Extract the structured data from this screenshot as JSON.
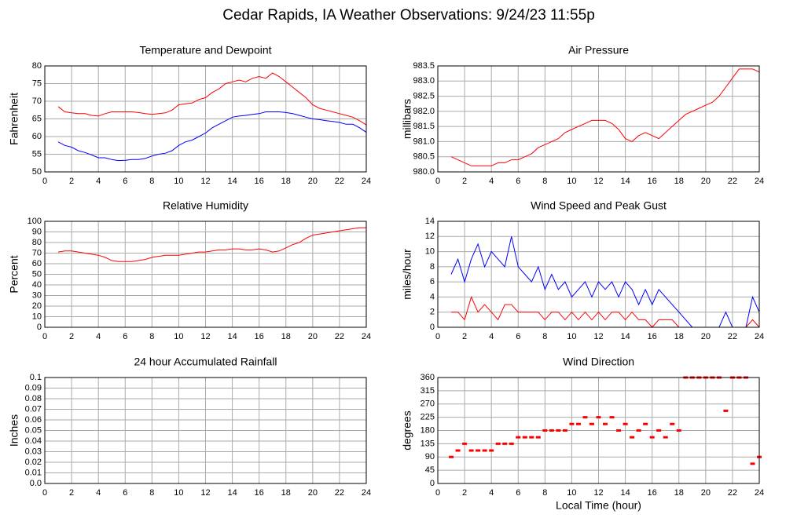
{
  "header": {
    "title": "Cedar Rapids, IA Weather Observations: 9/24/23 11:55p"
  },
  "chart_data": [
    {
      "type": "line",
      "title": "Temperature and Dewpoint",
      "y_label": "Fahrenheit",
      "x": [
        1,
        1.5,
        2,
        2.5,
        3,
        3.5,
        4,
        4.5,
        5,
        5.5,
        6,
        6.5,
        7,
        7.5,
        8,
        8.5,
        9,
        9.5,
        10,
        10.5,
        11,
        11.5,
        12,
        12.5,
        13,
        13.5,
        14,
        14.5,
        15,
        15.5,
        16,
        16.5,
        17,
        17.5,
        18,
        18.5,
        19,
        19.5,
        20,
        20.5,
        21,
        21.5,
        22,
        22.5,
        23,
        23.5,
        24
      ],
      "series": [
        {
          "color": "#ff0000",
          "values": [
            68.5,
            67,
            66.7,
            66.5,
            66.5,
            66,
            65.8,
            66.5,
            67,
            67,
            67,
            67,
            66.8,
            66.5,
            66.3,
            66.5,
            66.7,
            67.5,
            69,
            69.3,
            69.5,
            70.5,
            71,
            72.5,
            73.5,
            75,
            75.5,
            76,
            75.5,
            76.5,
            77,
            76.5,
            78,
            77,
            75.5,
            74,
            72.5,
            71,
            69,
            68,
            67.5,
            67,
            66.5,
            66,
            65.5,
            64.5,
            63.3
          ]
        },
        {
          "color": "#0000ff",
          "values": [
            58.5,
            57.5,
            57,
            56,
            55.5,
            54.8,
            54,
            54,
            53.5,
            53.2,
            53.3,
            53.5,
            53.5,
            53.8,
            54.5,
            55,
            55.3,
            56,
            57.5,
            58.5,
            59,
            60,
            61,
            62.5,
            63.5,
            64.5,
            65.5,
            65.8,
            66,
            66.3,
            66.5,
            67,
            67,
            67,
            66.8,
            66.5,
            66,
            65.5,
            65,
            64.8,
            64.5,
            64.3,
            64,
            63.5,
            63.5,
            62.5,
            61.2
          ]
        }
      ],
      "xlim": [
        0,
        24
      ],
      "xticks": [
        0,
        2,
        4,
        6,
        8,
        10,
        12,
        14,
        16,
        18,
        20,
        22,
        24
      ],
      "ylim": [
        50,
        80
      ],
      "yticks": [
        50,
        55,
        60,
        65,
        70,
        75,
        80
      ],
      "grid": true
    },
    {
      "type": "line",
      "title": "Air Pressure",
      "y_label": "millibars",
      "x": [
        1,
        1.5,
        2,
        2.5,
        3,
        3.5,
        4,
        4.5,
        5,
        5.5,
        6,
        6.5,
        7,
        7.5,
        8,
        8.5,
        9,
        9.5,
        10,
        10.5,
        11,
        11.5,
        12,
        12.5,
        13,
        13.5,
        14,
        14.5,
        15,
        15.5,
        16,
        16.5,
        17,
        17.5,
        18,
        18.5,
        19,
        19.5,
        20,
        20.5,
        21,
        21.5,
        22,
        22.5,
        23,
        23.5,
        24
      ],
      "series": [
        {
          "color": "#ff0000",
          "values": [
            980.5,
            980.4,
            980.3,
            980.2,
            980.2,
            980.2,
            980.2,
            980.3,
            980.3,
            980.4,
            980.4,
            980.5,
            980.6,
            980.8,
            980.9,
            981.0,
            981.1,
            981.3,
            981.4,
            981.5,
            981.6,
            981.7,
            981.7,
            981.7,
            981.6,
            981.4,
            981.1,
            981.0,
            981.2,
            981.3,
            981.2,
            981.1,
            981.3,
            981.5,
            981.7,
            981.9,
            982.0,
            982.1,
            982.2,
            982.3,
            982.5,
            982.8,
            983.1,
            983.4,
            983.4,
            983.4,
            983.3
          ]
        }
      ],
      "xlim": [
        0,
        24
      ],
      "xticks": [
        0,
        2,
        4,
        6,
        8,
        10,
        12,
        14,
        16,
        18,
        20,
        22,
        24
      ],
      "ylim": [
        980,
        983.5
      ],
      "yticks": [
        {
          "value": 980,
          "label": "980.0"
        },
        980.5,
        {
          "value": 981,
          "label": "981.0"
        },
        981.5,
        {
          "value": 982,
          "label": "982.0"
        },
        982.5,
        {
          "value": 983,
          "label": "983.0"
        },
        983.5
      ],
      "grid": true
    },
    {
      "type": "line",
      "title": "Relative Humidity",
      "y_label": "Percent",
      "x": [
        1,
        1.5,
        2,
        2.5,
        3,
        3.5,
        4,
        4.5,
        5,
        5.5,
        6,
        6.5,
        7,
        7.5,
        8,
        8.5,
        9,
        9.5,
        10,
        10.5,
        11,
        11.5,
        12,
        12.5,
        13,
        13.5,
        14,
        14.5,
        15,
        15.5,
        16,
        16.5,
        17,
        17.5,
        18,
        18.5,
        19,
        19.5,
        20,
        20.5,
        21,
        21.5,
        22,
        22.5,
        23,
        23.5,
        24
      ],
      "series": [
        {
          "color": "#ff0000",
          "values": [
            71,
            72,
            72,
            71,
            70,
            69,
            68,
            66,
            63,
            62,
            62,
            62,
            63,
            64,
            66,
            67,
            68,
            68,
            68,
            69,
            70,
            71,
            71,
            72,
            73,
            73,
            74,
            74,
            73,
            73,
            74,
            73,
            71,
            72,
            75,
            78,
            80,
            84,
            87,
            88,
            89,
            90,
            91,
            92,
            93,
            94,
            94
          ]
        }
      ],
      "xlim": [
        0,
        24
      ],
      "xticks": [
        0,
        2,
        4,
        6,
        8,
        10,
        12,
        14,
        16,
        18,
        20,
        22,
        24
      ],
      "ylim": [
        0,
        100
      ],
      "yticks": [
        0,
        10,
        20,
        30,
        40,
        50,
        60,
        70,
        80,
        90,
        100
      ],
      "grid": true
    },
    {
      "type": "line",
      "title": "Wind Speed and Peak Gust",
      "y_label": "miles/hour",
      "x": [
        1,
        1.5,
        2,
        2.5,
        3,
        3.5,
        4,
        4.5,
        5,
        5.5,
        6,
        6.5,
        7,
        7.5,
        8,
        8.5,
        9,
        9.5,
        10,
        10.5,
        11,
        11.5,
        12,
        12.5,
        13,
        13.5,
        14,
        14.5,
        15,
        15.5,
        16,
        16.5,
        17,
        17.5,
        18,
        18.5,
        19,
        19.5,
        20,
        20.5,
        21,
        21.5,
        22,
        22.5,
        23,
        23.5,
        24
      ],
      "series": [
        {
          "color": "#0000ff",
          "values": [
            7,
            9,
            6,
            9,
            11,
            8,
            10,
            9,
            8,
            12,
            8,
            7,
            6,
            8,
            5,
            7,
            5,
            6,
            4,
            5,
            6,
            4,
            6,
            5,
            6,
            4,
            6,
            5,
            3,
            5,
            3,
            5,
            4,
            3,
            2,
            1,
            0,
            0,
            0,
            0,
            0,
            2,
            0,
            0,
            0,
            4,
            2
          ]
        },
        {
          "color": "#ff0000",
          "values": [
            2,
            2,
            1,
            4,
            2,
            3,
            2,
            1,
            3,
            3,
            2,
            2,
            2,
            2,
            1,
            2,
            2,
            1,
            2,
            1,
            2,
            1,
            2,
            1,
            2,
            2,
            1,
            2,
            1,
            1,
            0,
            1,
            1,
            1,
            0,
            0,
            0,
            0,
            0,
            0,
            0,
            0,
            0,
            0,
            0,
            1,
            0
          ]
        }
      ],
      "xlim": [
        0,
        24
      ],
      "xticks": [
        0,
        2,
        4,
        6,
        8,
        10,
        12,
        14,
        16,
        18,
        20,
        22,
        24
      ],
      "ylim": [
        0,
        14
      ],
      "yticks": [
        0,
        2,
        4,
        6,
        8,
        10,
        12,
        14
      ],
      "grid": true
    },
    {
      "type": "line",
      "title": "24 hour Accumulated Rainfall",
      "y_label": "Inches",
      "x": [
        1,
        24
      ],
      "series": [
        {
          "color": "#ff0000",
          "values": [
            0,
            0
          ]
        }
      ],
      "xlim": [
        0,
        24
      ],
      "xticks": [
        0,
        2,
        4,
        6,
        8,
        10,
        12,
        14,
        16,
        18,
        20,
        22,
        24
      ],
      "ylim": [
        0,
        0.1
      ],
      "yticks": [
        {
          "value": 0,
          "label": "0.0"
        },
        0.01,
        0.02,
        0.03,
        0.04,
        0.05,
        0.06,
        0.07,
        0.08,
        0.09,
        0.1
      ],
      "grid": true
    },
    {
      "type": "scatter",
      "title": "Wind Direction",
      "y_label": "degrees",
      "x_label": "Local Time (hour)",
      "x": [
        1,
        1.5,
        2,
        2.5,
        3,
        3.5,
        4,
        4.5,
        5,
        5.5,
        6,
        6.5,
        7,
        7.5,
        8,
        8.5,
        9,
        9.5,
        10,
        10.5,
        11,
        11.5,
        12,
        12.5,
        13,
        13.5,
        14,
        14.5,
        15,
        15.5,
        16,
        16.5,
        17,
        17.5,
        18,
        18.5,
        19,
        19.5,
        20,
        20.5,
        21,
        21.5,
        22,
        22.5,
        23,
        23.5,
        24
      ],
      "series": [
        {
          "color": "#ff0000",
          "values": [
            90,
            112,
            135,
            112,
            112,
            112,
            112,
            135,
            135,
            135,
            157,
            157,
            157,
            157,
            180,
            180,
            180,
            180,
            202,
            202,
            225,
            202,
            225,
            202,
            225,
            180,
            202,
            157,
            180,
            202,
            157,
            180,
            157,
            202,
            180,
            360,
            360,
            360,
            360,
            360,
            360,
            247,
            360,
            360,
            360,
            67,
            90
          ]
        }
      ],
      "xlim": [
        0,
        24
      ],
      "xticks": [
        0,
        2,
        4,
        6,
        8,
        10,
        12,
        14,
        16,
        18,
        20,
        22,
        24
      ],
      "ylim": [
        0,
        360
      ],
      "yticks": [
        0,
        45,
        90,
        135,
        180,
        225,
        270,
        315,
        360
      ],
      "grid": true
    }
  ]
}
